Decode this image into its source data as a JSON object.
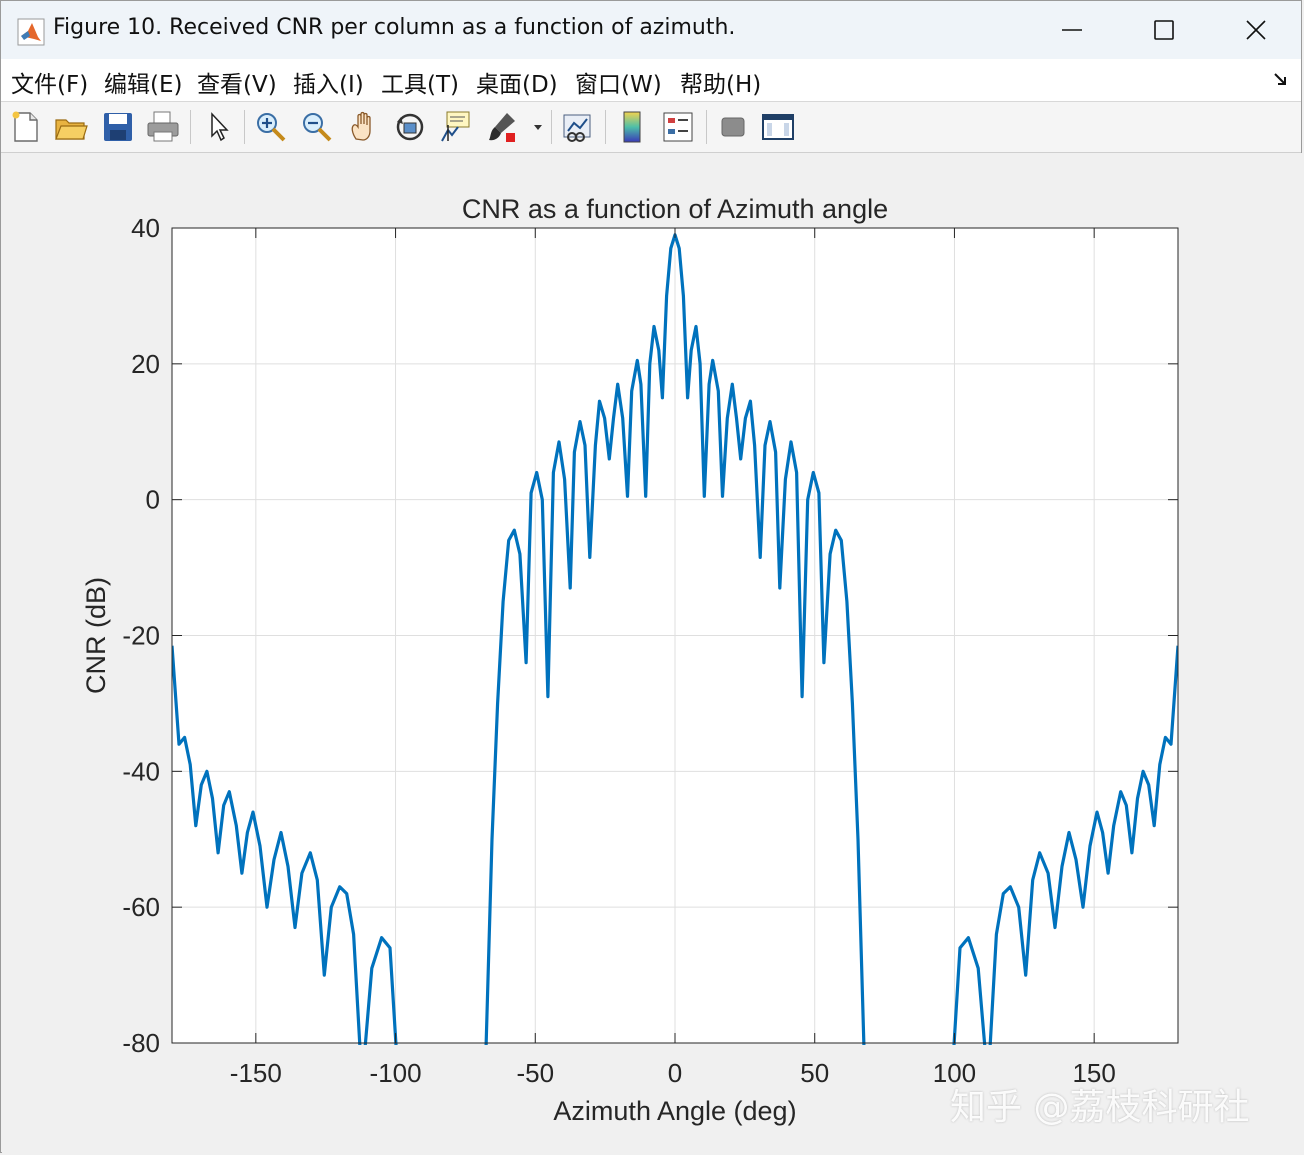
{
  "window": {
    "title": "Figure 10. Received CNR per column as a function of azimuth."
  },
  "menu": {
    "items": [
      "文件(F)",
      "编辑(E)",
      "查看(V)",
      "插入(I)",
      "工具(T)",
      "桌面(D)",
      "窗口(W)",
      "帮助(H)"
    ]
  },
  "toolbar": {
    "icons": [
      "new-figure-icon",
      "open-file-icon",
      "save-icon",
      "print-icon",
      "pointer-icon",
      "zoom-in-icon",
      "zoom-out-icon",
      "pan-hand-icon",
      "rotate-3d-icon",
      "data-cursor-icon",
      "brush-icon",
      "link-plot-icon",
      "colorbar-icon",
      "legend-icon",
      "hide-plot-tools-icon",
      "show-plot-tools-icon"
    ]
  },
  "watermark": "知乎 @荔枝科研社",
  "chart_data": {
    "type": "line",
    "title": "CNR as a function of Azimuth angle",
    "xlabel": "Azimuth Angle (deg)",
    "ylabel": "CNR (dB)",
    "xlim": [
      -180,
      180
    ],
    "ylim": [
      -80,
      40
    ],
    "xticks": [
      -150,
      -100,
      -50,
      0,
      50,
      100,
      150
    ],
    "xtick_labels": [
      "-150",
      "-100",
      "-50",
      "0",
      "50",
      "100",
      "150"
    ],
    "yticks": [
      -80,
      -60,
      -40,
      -20,
      0,
      20,
      40
    ],
    "ytick_labels": [
      "-80",
      "-60",
      "-40",
      "-20",
      "0",
      "20",
      "40"
    ],
    "grid": true,
    "line_color": "#0072BD",
    "series": [
      {
        "x": [
          0,
          1.5,
          3,
          4.5,
          5.8,
          7.5,
          9,
          10.5,
          12.2,
          13.5,
          15.5,
          17,
          18.7,
          20.5,
          22,
          23.5,
          25.2,
          27,
          28.5,
          30.5,
          32.2,
          34,
          36,
          37.5,
          39.5,
          41.5,
          43.5,
          45.5,
          47.5,
          49.5,
          51.5,
          53.3,
          55.5,
          57.5,
          59.5,
          61.5,
          63.5,
          65.5,
          68,
          71,
          74,
          77,
          80,
          83,
          86,
          88,
          90,
          93,
          96,
          99,
          102,
          105,
          108.5,
          112,
          115,
          117.5,
          120,
          123,
          125.5,
          128,
          130.5,
          133.5,
          136,
          138.5,
          141,
          143.5,
          146,
          148.5,
          151,
          153,
          155,
          157,
          159.5,
          161.5,
          163.5,
          165.5,
          167.5,
          169.5,
          171.5,
          173.5,
          175.5,
          177.5,
          180
        ],
        "y": [
          39,
          37,
          30,
          15,
          22,
          25.5,
          20,
          0.5,
          17,
          20.5,
          16,
          0.5,
          12,
          17,
          12,
          6,
          12,
          14.5,
          8,
          -8.5,
          8,
          11.5,
          7,
          -13,
          3,
          8.5,
          4,
          -29,
          0,
          4,
          1,
          -24,
          -8,
          -4.5,
          -6,
          -15,
          -30,
          -50,
          -80,
          -80,
          -80,
          -80,
          -80,
          -80,
          -80,
          -80,
          -80,
          -80,
          -80,
          -80,
          -66,
          -64.5,
          -69,
          -80,
          -64,
          -58,
          -57,
          -60,
          -70,
          -56,
          -52,
          -55,
          -63,
          -54,
          -49,
          -53,
          -60,
          -51,
          -46,
          -49,
          -55,
          -48,
          -43,
          -45,
          -52,
          -44,
          -40,
          -42,
          -48,
          -39,
          -35,
          -36,
          -21.5
        ],
        "mirror": true
      }
    ]
  }
}
